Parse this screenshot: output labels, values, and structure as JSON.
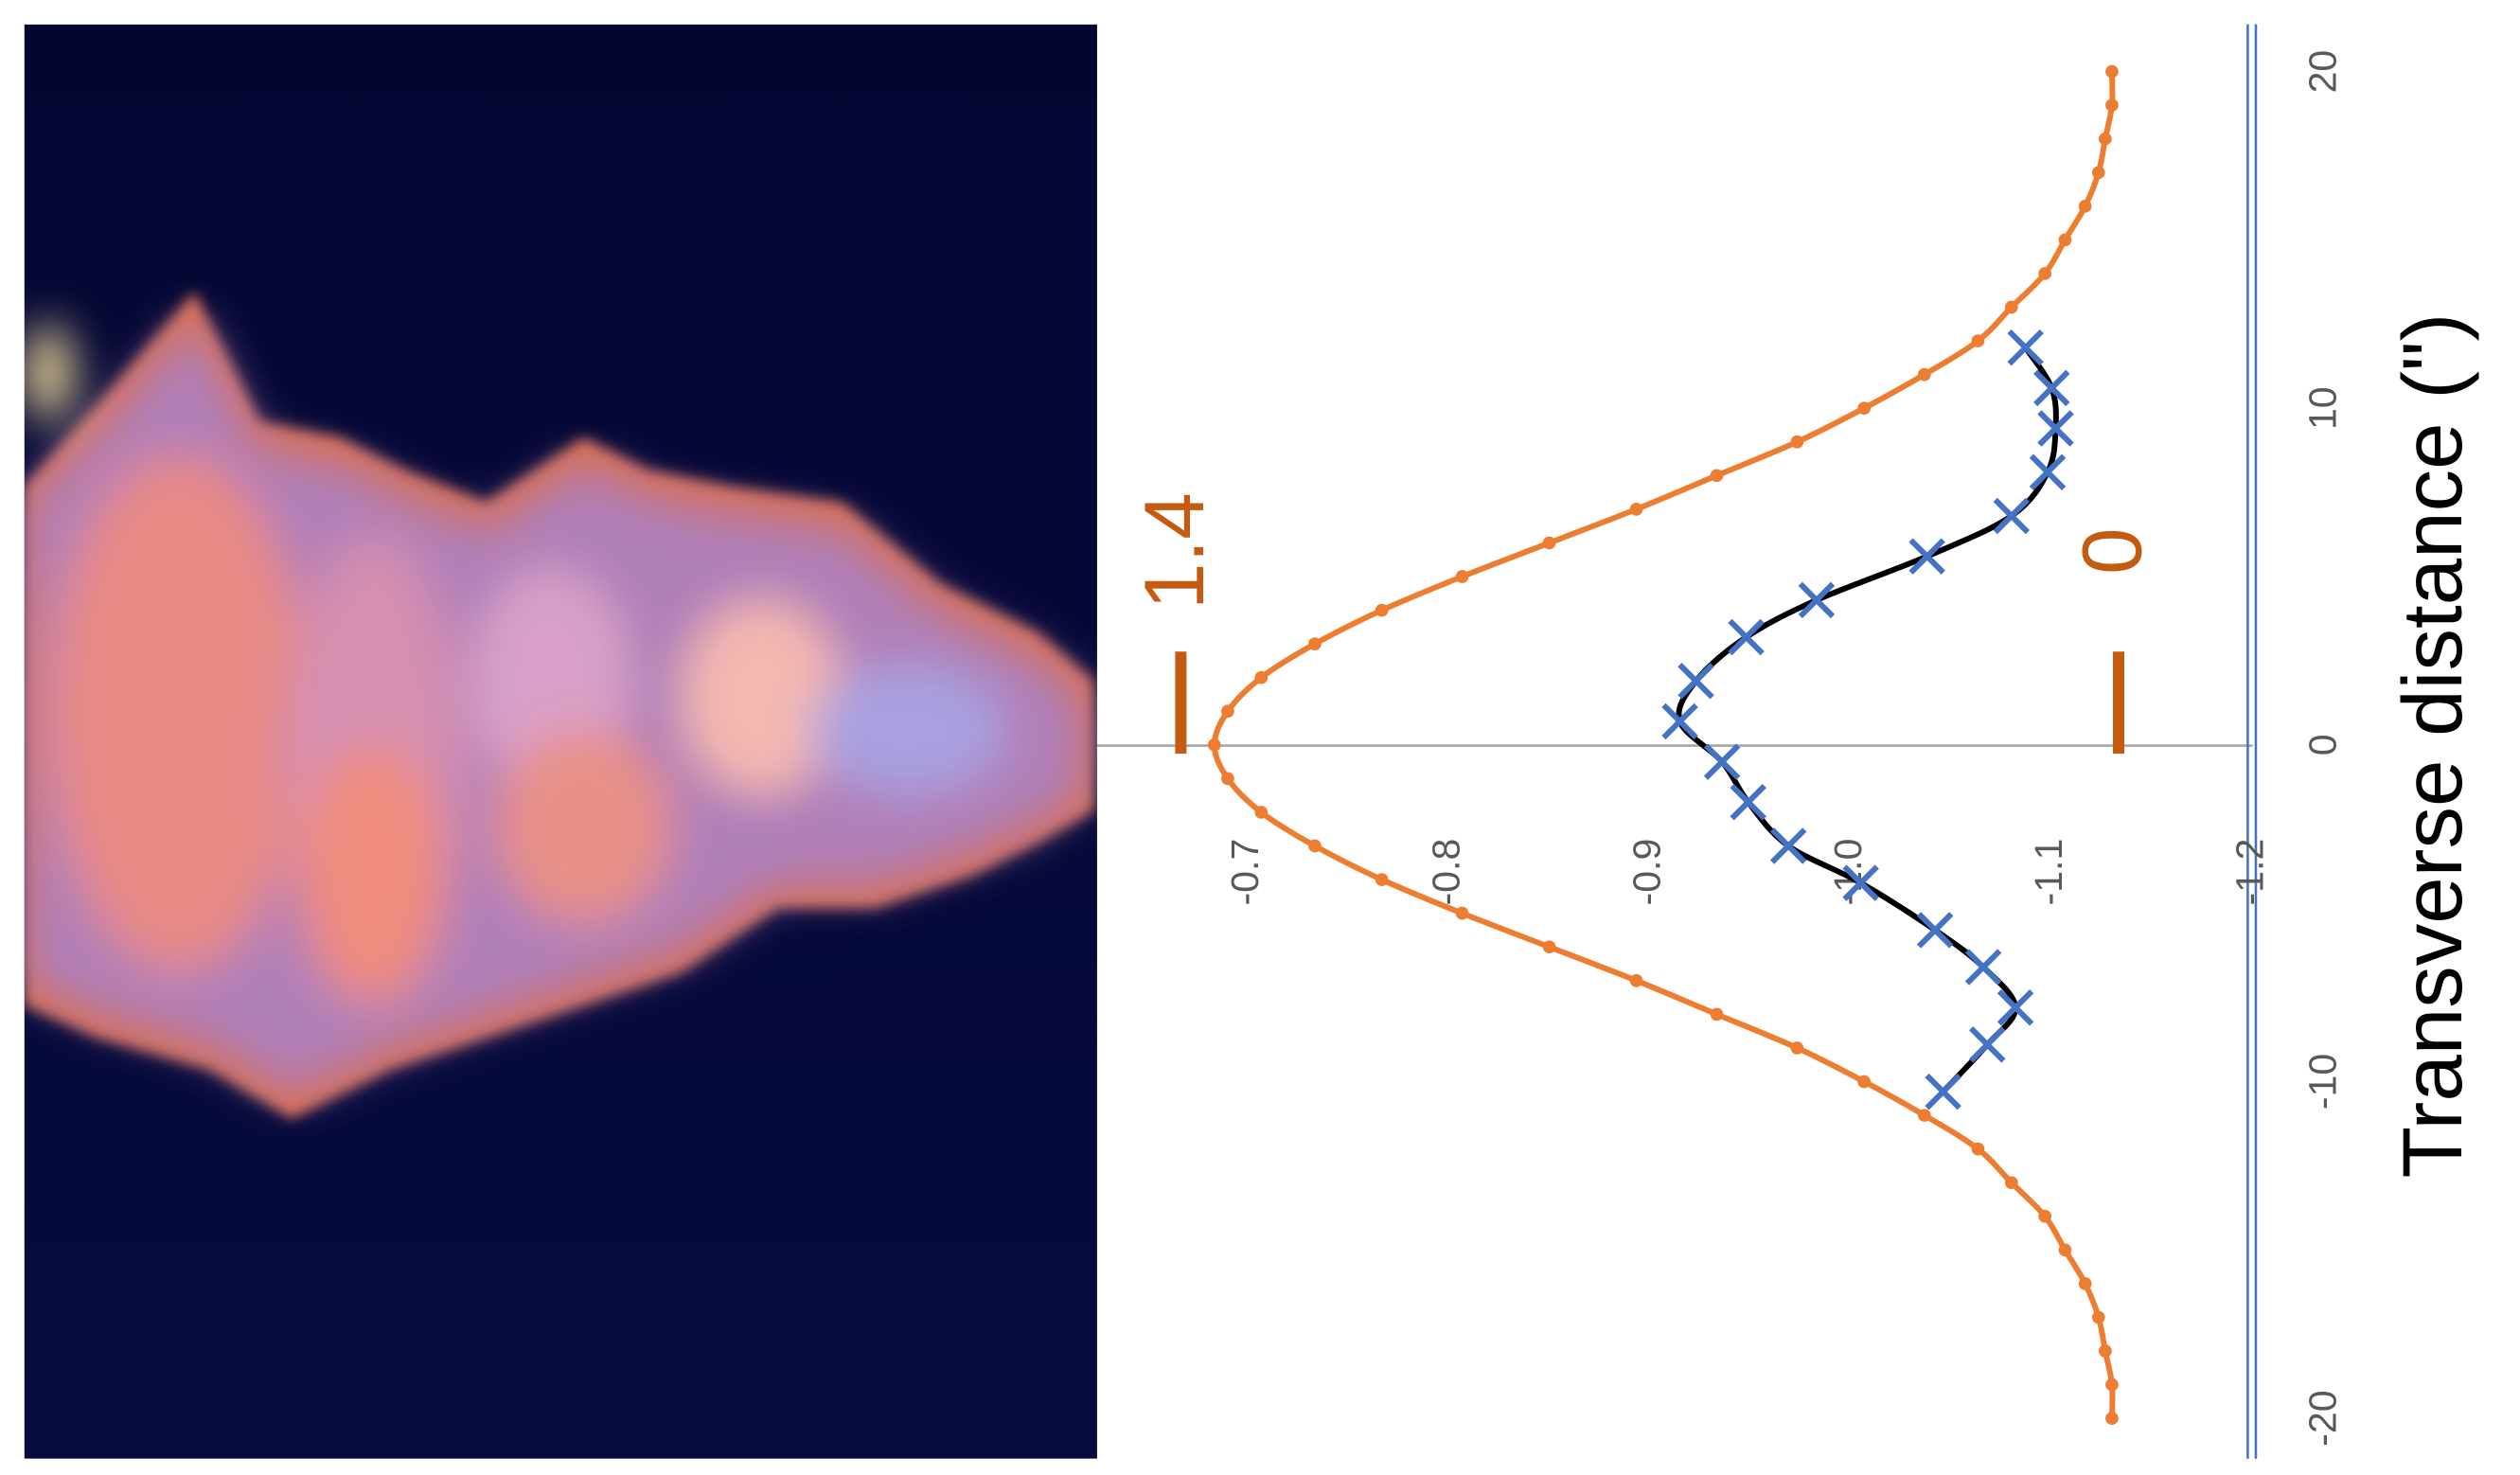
{
  "chart_data": {
    "type": "line",
    "xlabel": "Transverse distance (\")",
    "xlim": [
      -21.2,
      21.4
    ],
    "xticks": [
      -20,
      -10,
      0,
      10,
      20
    ],
    "ylim": [
      -0.625,
      -1.2
    ],
    "yticks": [
      -0.7,
      -0.8,
      -0.9,
      {
        "value": -1,
        "label": "-1.0"
      },
      -1.1,
      -1.2
    ],
    "y2lim": [
      1.525,
      -0.2
    ],
    "y2ticks": [
      0,
      1.4
    ],
    "y2_color": "#c55a11",
    "series": [
      {
        "color": "#ed7d31",
        "marker": "o",
        "axis": "y2",
        "x": [
          -20,
          -19,
          -18,
          -17,
          -16,
          -15,
          -14,
          -13,
          -12,
          -11,
          -10,
          -9,
          -8,
          -7,
          -6,
          -5,
          -4,
          -3,
          -2,
          -1,
          0,
          1,
          2,
          3,
          4,
          5,
          6,
          7,
          8,
          9,
          10,
          11,
          12,
          13,
          14,
          15,
          16,
          17,
          18,
          19,
          20
        ],
        "values": [
          0.01,
          0.01,
          0.02,
          0.03,
          0.05,
          0.08,
          0.11,
          0.16,
          0.21,
          0.29,
          0.38,
          0.48,
          0.6,
          0.72,
          0.85,
          0.98,
          1.1,
          1.2,
          1.28,
          1.33,
          1.35,
          1.33,
          1.28,
          1.2,
          1.1,
          0.98,
          0.85,
          0.72,
          0.6,
          0.48,
          0.38,
          0.29,
          0.21,
          0.16,
          0.11,
          0.08,
          0.05,
          0.03,
          0.02,
          0.01,
          0.01
        ]
      },
      {
        "color": "#4472c4",
        "line_color": "#000000",
        "marker": "x",
        "x": [
          -10.3,
          -8.9,
          -7.8,
          -6.6,
          -5.5,
          -4.1,
          -3.0,
          -1.7,
          -0.5,
          0.7,
          1.9,
          3.2,
          4.3,
          5.6,
          6.8,
          8.1,
          9.4,
          10.6,
          11.8
        ],
        "values": [
          -1.046,
          -1.068,
          -1.082,
          -1.066,
          -1.042,
          -1.005,
          -0.969,
          -0.949,
          -0.936,
          -0.915,
          -0.923,
          -0.948,
          -0.983,
          -1.038,
          -1.08,
          -1.098,
          -1.102,
          -1.1,
          -1.087
        ]
      }
    ]
  }
}
